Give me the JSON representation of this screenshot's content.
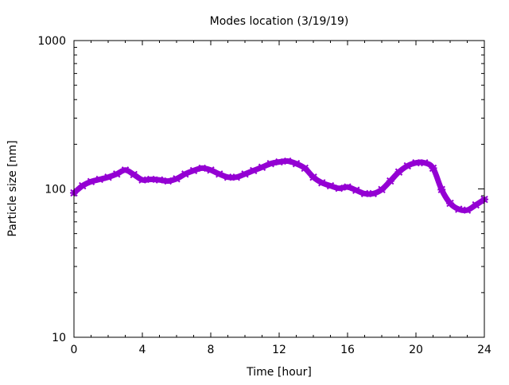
{
  "chart_data": {
    "type": "line",
    "title": "Modes location (3/19/19)",
    "xlabel": "Time [hour]",
    "ylabel": "Particle size [nm]",
    "xlim": [
      0,
      24
    ],
    "ylim": [
      10,
      1000
    ],
    "yscale": "log",
    "grid": false,
    "legend": "none",
    "xticks": [
      "0",
      "4",
      "8",
      "12",
      "16",
      "20",
      "24"
    ],
    "yticks": [
      "10",
      "100",
      "1000"
    ],
    "series": [
      {
        "name": "mode",
        "color": "#9400d3",
        "x": [
          0,
          0.5,
          1,
          1.5,
          2,
          2.5,
          3,
          3.5,
          4,
          4.5,
          5,
          5.5,
          6,
          6.5,
          7,
          7.5,
          8,
          8.5,
          9,
          9.5,
          10,
          10.5,
          11,
          11.5,
          12,
          12.5,
          13,
          13.5,
          14,
          14.5,
          15,
          15.5,
          16,
          16.5,
          17,
          17.5,
          18,
          18.5,
          19,
          19.5,
          20,
          20.5,
          21,
          21.5,
          22,
          22.5,
          23,
          23.5,
          24
        ],
        "y": [
          94,
          105,
          112,
          116,
          120,
          126,
          134,
          125,
          115,
          116,
          115,
          113,
          117,
          126,
          133,
          138,
          134,
          126,
          120,
          120,
          126,
          133,
          140,
          148,
          152,
          154,
          148,
          138,
          120,
          110,
          105,
          101,
          103,
          98,
          93,
          93,
          99,
          113,
          130,
          143,
          150,
          150,
          138,
          99,
          80,
          73,
          72,
          78,
          85
        ]
      }
    ]
  }
}
